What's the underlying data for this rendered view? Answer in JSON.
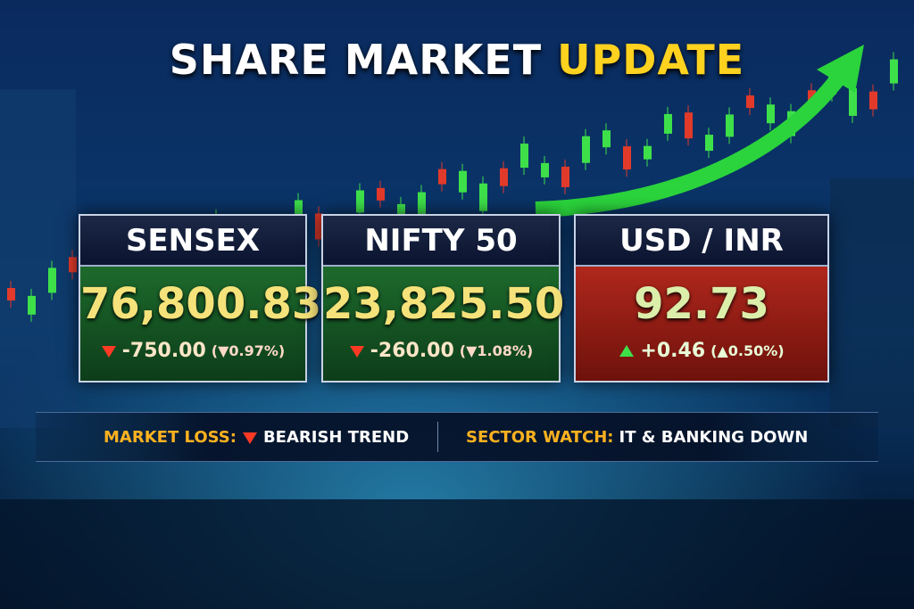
{
  "header": {
    "title_main": "SHARE MARKET",
    "title_highlight": "UPDATE"
  },
  "cards": [
    {
      "name": "SENSEX",
      "value": "76,800.83",
      "change": "-750.00",
      "change_pct": "(▼0.97%)",
      "trend": "down"
    },
    {
      "name": "NIFTY 50",
      "value": "23,825.50",
      "change": "-260.00",
      "change_pct": "(▼1.08%)",
      "trend": "down"
    },
    {
      "name": "USD / INR",
      "value": "92.73",
      "change": "+0.46",
      "change_pct": "(▲0.50%)",
      "trend": "up"
    }
  ],
  "ticker": [
    {
      "label": "MARKET LOSS:",
      "text": "BEARISH TREND"
    },
    {
      "label": "SECTOR WATCH:",
      "text": "IT & BANKING DOWN"
    }
  ]
}
